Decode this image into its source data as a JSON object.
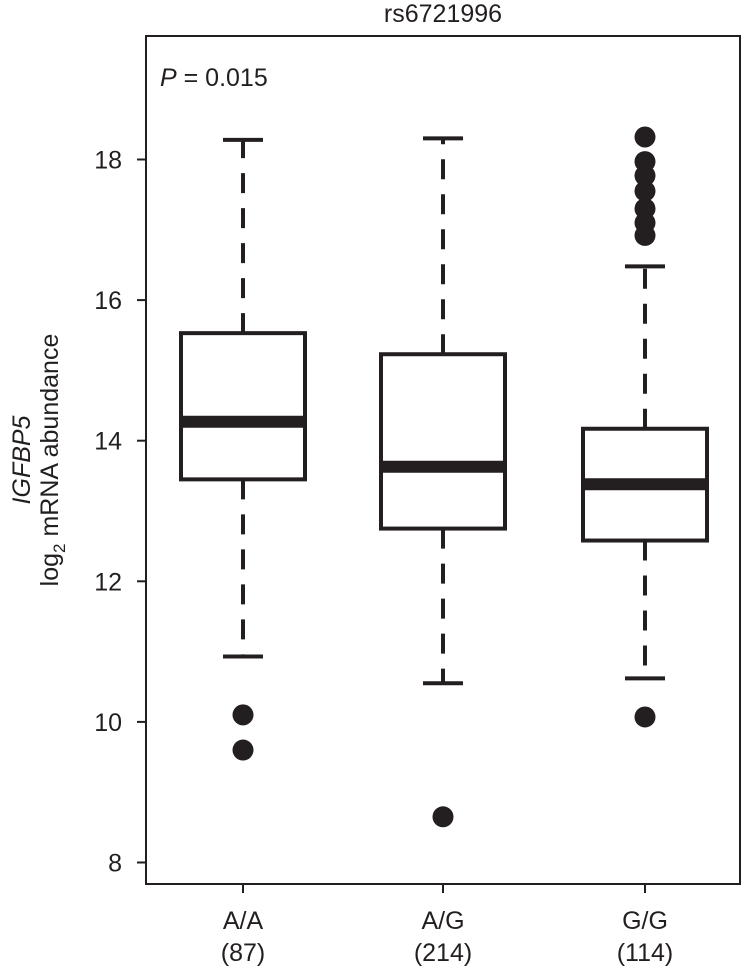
{
  "chart_data": {
    "type": "box",
    "title": "rs6721996",
    "annotation": {
      "label": "P",
      "text": " = 0.015"
    },
    "ylabel_gene": "IGFBP5",
    "ylabel": {
      "prefix": "log",
      "subscript": "2",
      "suffix": " mRNA abundance"
    },
    "ylim": [
      7.8,
      19.8
    ],
    "yticks": [
      8,
      10,
      12,
      14,
      16,
      18
    ],
    "categories": [
      "A/A",
      "A/G",
      "G/G"
    ],
    "counts": [
      "(87)",
      "(214)",
      "(114)"
    ],
    "boxes": [
      {
        "category": "A/A",
        "whisker_low": 10.93,
        "q1": 13.45,
        "median": 14.27,
        "q3": 15.53,
        "whisker_high": 18.28,
        "outliers": [
          10.1,
          9.6
        ]
      },
      {
        "category": "A/G",
        "whisker_low": 10.55,
        "q1": 12.75,
        "median": 13.63,
        "q3": 15.23,
        "whisker_high": 18.3,
        "outliers": [
          8.65
        ]
      },
      {
        "category": "G/G",
        "whisker_low": 10.62,
        "q1": 12.58,
        "median": 13.38,
        "q3": 14.17,
        "whisker_high": 16.48,
        "outliers": [
          18.32,
          17.97,
          17.77,
          17.55,
          17.3,
          17.1,
          16.92,
          10.07
        ]
      }
    ],
    "grid": false,
    "color": "#231f20"
  }
}
